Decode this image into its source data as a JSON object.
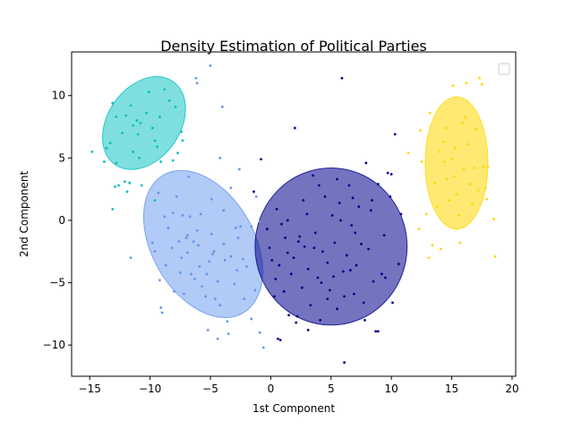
{
  "chart_data": {
    "type": "scatter",
    "title": "Density Estimation of Political Parties",
    "xlabel": "1st Component",
    "ylabel": "2nd Component",
    "xlim": [
      -16.5,
      20.3
    ],
    "ylim": [
      -12.5,
      13.5
    ],
    "x_ticks": [
      -15,
      -10,
      -5,
      0,
      5,
      10,
      15,
      20
    ],
    "y_ticks": [
      -10,
      -5,
      0,
      5,
      10
    ],
    "grid": false,
    "legend": {
      "placement": "top-right",
      "entries": []
    },
    "clusters": [
      {
        "color": "#00bfbf",
        "ellipse": {
          "center": [
            -10.5,
            7.8
          ],
          "width": 8.4,
          "height": 5.8,
          "angle_deg": 55,
          "opacity": 0.5
        },
        "points": [
          [
            -14.8,
            5.5
          ],
          [
            -13.8,
            4.7
          ],
          [
            -13.6,
            5.8
          ],
          [
            -13.3,
            6.2
          ],
          [
            -13.1,
            9.4
          ],
          [
            -12.8,
            8.3
          ],
          [
            -12.3,
            7.0
          ],
          [
            -12.0,
            8.4
          ],
          [
            -11.6,
            9.2
          ],
          [
            -11.4,
            7.6
          ],
          [
            -11.0,
            6.9
          ],
          [
            -10.8,
            7.8
          ],
          [
            -10.3,
            8.6
          ],
          [
            -9.6,
            6.4
          ],
          [
            -9.4,
            5.9
          ],
          [
            -9.2,
            8.3
          ],
          [
            -8.8,
            10.5
          ],
          [
            -8.4,
            9.6
          ],
          [
            -7.9,
            9.1
          ],
          [
            -7.4,
            7.1
          ],
          [
            -7.3,
            6.4
          ],
          [
            -7.7,
            5.4
          ],
          [
            -8.1,
            4.8
          ],
          [
            -9.1,
            4.7
          ],
          [
            -10.9,
            5.0
          ],
          [
            -11.4,
            5.5
          ],
          [
            -12.1,
            3.1
          ],
          [
            -12.6,
            2.8
          ],
          [
            -12.9,
            2.7
          ],
          [
            -13.1,
            0.9
          ],
          [
            -11.9,
            2.3
          ],
          [
            -11.7,
            3.0
          ],
          [
            -10.7,
            2.8
          ],
          [
            -9.6,
            1.6
          ],
          [
            -12.8,
            4.6
          ],
          [
            -10.1,
            10.3
          ],
          [
            -11.1,
            8.0
          ],
          [
            -9.8,
            7.4
          ]
        ]
      },
      {
        "color": "#6495ed",
        "ellipse": {
          "center": [
            -5.6,
            -1.9
          ],
          "width": 13.2,
          "height": 8.2,
          "angle_deg": -60,
          "opacity": 0.5
        },
        "points": [
          [
            -11.6,
            -3.0
          ],
          [
            -9.6,
            -2.5
          ],
          [
            -9.2,
            -4.8
          ],
          [
            -9.1,
            -7.0
          ],
          [
            -9.0,
            -7.4
          ],
          [
            -8.5,
            -0.6
          ],
          [
            -8.2,
            -2.2
          ],
          [
            -8.0,
            -5.7
          ],
          [
            -7.6,
            -1.7
          ],
          [
            -7.3,
            0.4
          ],
          [
            -7.0,
            -1.4
          ],
          [
            -6.9,
            -2.6
          ],
          [
            -6.6,
            -4.3
          ],
          [
            -6.4,
            -1.7
          ],
          [
            -6.1,
            -0.8
          ],
          [
            -5.9,
            -3.7
          ],
          [
            -5.7,
            -5.3
          ],
          [
            -5.4,
            -6.1
          ],
          [
            -5.1,
            -3.3
          ],
          [
            -4.9,
            -1.1
          ],
          [
            -4.7,
            -2.5
          ],
          [
            -4.4,
            -4.9
          ],
          [
            -4.2,
            -6.8
          ],
          [
            -3.9,
            -1.9
          ],
          [
            -3.6,
            -8.1
          ],
          [
            -3.3,
            -2.9
          ],
          [
            -3.0,
            -5.1
          ],
          [
            -2.8,
            -4.0
          ],
          [
            -2.5,
            -0.5
          ],
          [
            -2.2,
            -6.3
          ],
          [
            -2.0,
            -3.7
          ],
          [
            -1.6,
            -7.9
          ],
          [
            -1.3,
            -5.6
          ],
          [
            -0.9,
            -9.0
          ],
          [
            -0.6,
            -10.2
          ],
          [
            -9.3,
            2.2
          ],
          [
            -8.8,
            0.3
          ],
          [
            -8.1,
            0.6
          ],
          [
            -7.8,
            1.9
          ],
          [
            -6.8,
            3.5
          ],
          [
            -4.9,
            1.7
          ],
          [
            -4.2,
            5.0
          ],
          [
            -3.3,
            2.6
          ],
          [
            -2.6,
            4.1
          ],
          [
            -1.2,
            1.9
          ],
          [
            -3.9,
            0.8
          ],
          [
            -6.3,
            -4.7
          ],
          [
            -4.6,
            -6.3
          ],
          [
            -7.4,
            -3.0
          ],
          [
            -5.8,
            0.5
          ],
          [
            -9.8,
            -1.8
          ],
          [
            -7.2,
            -5.9
          ],
          [
            -2.7,
            -1.4
          ],
          [
            -5.2,
            -8.8
          ],
          [
            -4.4,
            -9.5
          ],
          [
            -3.5,
            -9.1
          ],
          [
            -6.0,
            -2.0
          ],
          [
            -8.7,
            -3.6
          ],
          [
            -6.7,
            0.3
          ],
          [
            -5.3,
            -4.3
          ],
          [
            -3.8,
            -3.2
          ],
          [
            -7.5,
            -4.2
          ],
          [
            -4.0,
            9.1
          ],
          [
            -5.0,
            12.4
          ],
          [
            -6.2,
            11.4
          ],
          [
            -6.1,
            11.0
          ],
          [
            -2.9,
            -0.6
          ],
          [
            -0.9,
            -0.1
          ],
          [
            -1.6,
            -0.5
          ],
          [
            -2.3,
            -3.1
          ],
          [
            -4.8,
            -2.7
          ],
          [
            -6.9,
            -1.2
          ]
        ]
      },
      {
        "color": "#00008b",
        "ellipse": {
          "center": [
            5.0,
            -2.1
          ],
          "width": 12.6,
          "height": 12.6,
          "angle_deg": 0,
          "opacity": 0.55
        },
        "points": [
          [
            -1.4,
            2.3
          ],
          [
            -0.8,
            4.9
          ],
          [
            -0.3,
            -0.7
          ],
          [
            -0.1,
            -2.2
          ],
          [
            0.1,
            -3.2
          ],
          [
            0.3,
            -6.1
          ],
          [
            0.4,
            -4.7
          ],
          [
            0.5,
            0.9
          ],
          [
            0.6,
            -9.5
          ],
          [
            0.8,
            -9.6
          ],
          [
            0.9,
            -0.3
          ],
          [
            1.2,
            -1.4
          ],
          [
            1.4,
            -2.6
          ],
          [
            1.5,
            -7.6
          ],
          [
            1.7,
            -4.3
          ],
          [
            1.9,
            -3.0
          ],
          [
            2.0,
            7.4
          ],
          [
            2.2,
            -7.7
          ],
          [
            2.4,
            -1.3
          ],
          [
            2.6,
            -5.4
          ],
          [
            2.8,
            -2.1
          ],
          [
            3.0,
            0.5
          ],
          [
            3.1,
            -3.9
          ],
          [
            3.3,
            -6.8
          ],
          [
            3.5,
            3.6
          ],
          [
            3.7,
            -1.0
          ],
          [
            3.9,
            -4.6
          ],
          [
            4.1,
            -8.0
          ],
          [
            4.3,
            -2.5
          ],
          [
            4.5,
            1.9
          ],
          [
            4.7,
            -3.4
          ],
          [
            4.9,
            -5.6
          ],
          [
            5.1,
            0.4
          ],
          [
            5.3,
            -1.8
          ],
          [
            5.5,
            -7.1
          ],
          [
            5.7,
            1.4
          ],
          [
            5.9,
            11.4
          ],
          [
            6.0,
            -4.1
          ],
          [
            6.1,
            -11.4
          ],
          [
            6.3,
            -2.8
          ],
          [
            6.5,
            2.8
          ],
          [
            6.7,
            -0.4
          ],
          [
            6.9,
            -5.9
          ],
          [
            7.1,
            -3.6
          ],
          [
            7.3,
            1.1
          ],
          [
            7.5,
            -1.9
          ],
          [
            7.7,
            -6.6
          ],
          [
            7.9,
            4.6
          ],
          [
            8.1,
            -2.3
          ],
          [
            8.3,
            0.8
          ],
          [
            8.5,
            -4.9
          ],
          [
            8.7,
            -8.9
          ],
          [
            8.9,
            2.9
          ],
          [
            9.2,
            -4.3
          ],
          [
            9.4,
            -1.2
          ],
          [
            9.7,
            3.8
          ],
          [
            10.0,
            3.7
          ],
          [
            10.1,
            -6.6
          ],
          [
            10.3,
            6.9
          ],
          [
            10.6,
            -3.5
          ],
          [
            10.8,
            0.5
          ],
          [
            8.9,
            -8.9
          ],
          [
            7.8,
            -8.0
          ],
          [
            6.1,
            -6.1
          ],
          [
            4.7,
            -6.3
          ],
          [
            3.1,
            -8.8
          ],
          [
            2.1,
            -8.2
          ],
          [
            1.1,
            -5.7
          ],
          [
            4.0,
            2.8
          ],
          [
            5.2,
            -4.5
          ],
          [
            6.6,
            -4.0
          ],
          [
            3.6,
            -2.2
          ],
          [
            2.7,
            1.6
          ],
          [
            5.8,
            0.0
          ],
          [
            7.0,
            -1.0
          ],
          [
            4.2,
            -5.0
          ],
          [
            1.4,
            0.0
          ],
          [
            8.4,
            1.6
          ],
          [
            9.9,
            1.9
          ],
          [
            9.5,
            -4.6
          ],
          [
            0.7,
            -3.6
          ],
          [
            2.3,
            -1.7
          ],
          [
            5.5,
            3.3
          ],
          [
            6.8,
            1.8
          ]
        ]
      },
      {
        "color": "#ffd700",
        "ellipse": {
          "center": [
            15.4,
            4.6
          ],
          "width": 5.2,
          "height": 10.6,
          "angle_deg": 0,
          "opacity": 0.55
        },
        "points": [
          [
            11.4,
            5.4
          ],
          [
            12.3,
            -0.7
          ],
          [
            12.4,
            7.2
          ],
          [
            12.5,
            4.7
          ],
          [
            12.9,
            0.5
          ],
          [
            13.1,
            -3.0
          ],
          [
            13.2,
            8.6
          ],
          [
            13.4,
            -2.0
          ],
          [
            13.6,
            3.0
          ],
          [
            13.8,
            1.1
          ],
          [
            14.0,
            5.5
          ],
          [
            14.1,
            -2.3
          ],
          [
            14.3,
            6.3
          ],
          [
            14.5,
            7.4
          ],
          [
            14.6,
            3.3
          ],
          [
            14.8,
            1.6
          ],
          [
            15.0,
            4.9
          ],
          [
            15.1,
            10.8
          ],
          [
            15.3,
            5.8
          ],
          [
            15.4,
            2.1
          ],
          [
            15.6,
            0.4
          ],
          [
            15.7,
            -1.8
          ],
          [
            15.9,
            7.8
          ],
          [
            16.0,
            4.1
          ],
          [
            16.2,
            11.0
          ],
          [
            16.4,
            6.1
          ],
          [
            16.5,
            2.9
          ],
          [
            16.7,
            1.3
          ],
          [
            16.9,
            4.2
          ],
          [
            17.0,
            7.3
          ],
          [
            17.2,
            2.4
          ],
          [
            17.3,
            11.4
          ],
          [
            17.5,
            10.9
          ],
          [
            17.6,
            4.3
          ],
          [
            17.8,
            2.6
          ],
          [
            18.0,
            4.3
          ],
          [
            18.5,
            0.1
          ],
          [
            18.6,
            -2.9
          ],
          [
            15.2,
            3.5
          ],
          [
            14.4,
            4.7
          ],
          [
            16.1,
            8.3
          ],
          [
            17.9,
            1.7
          ]
        ]
      }
    ]
  }
}
